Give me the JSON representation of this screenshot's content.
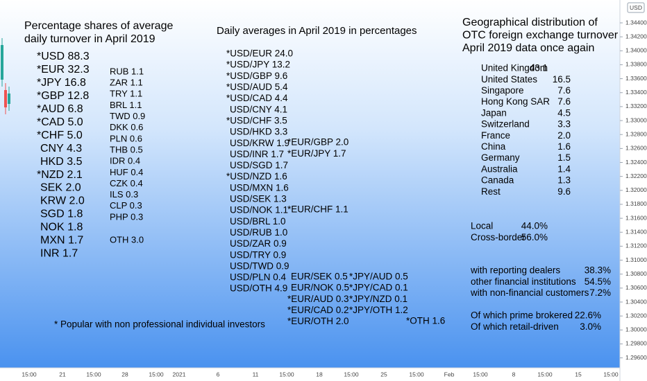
{
  "shares": {
    "title": [
      "Percentage shares of average",
      "daily turnover in April 2019"
    ],
    "main": [
      "*USD 88.3",
      "*EUR 32.3",
      "*JPY 16.8",
      "*GBP 12.8",
      "*AUD 6.8",
      "*CAD 5.0",
      "*CHF 5.0",
      "CNY 4.3",
      "HKD 3.5",
      "*NZD 2.1",
      "SEK 2.0",
      "KRW 2.0",
      "SGD 1.8",
      "NOK 1.8",
      "MXN 1.7",
      "INR 1.7"
    ],
    "minor": [
      "RUB 1.1",
      "ZAR 1.1",
      "TRY 1.1",
      "BRL 1.1",
      "TWD 0.9",
      "DKK 0.6",
      "PLN 0.6",
      "THB 0.5",
      "IDR 0.4",
      "HUF 0.4",
      "CZK 0.4",
      "ILS 0.3",
      "CLP 0.3",
      "PHP 0.3"
    ],
    "other": "OTH 3.0",
    "footnote": "* Popular with non professional individual investors"
  },
  "pairs": {
    "title": "Daily averages in April 2019 in percentages",
    "usd": [
      "*USD/EUR 24.0",
      "*USD/JPY 13.2",
      "*USD/GBP 9.6",
      "*USD/AUD 5.4",
      "*USD/CAD 4.4",
      "USD/CNY 4.1",
      "*USD/CHF 3.5",
      "USD/HKD 3.3",
      "USD/KRW 1.9",
      "USD/INR 1.7",
      "USD/SGD 1.7",
      "*USD/NZD 1.6",
      "USD/MXN 1.6",
      "USD/SEK 1.3",
      "USD/NOK 1.1",
      "USD/BRL 1.0",
      "USD/RUB 1.0",
      "USD/ZAR 0.9",
      "USD/TRY 0.9",
      "USD/TWD 0.9",
      "USD/PLN 0.4",
      "USD/OTH 4.9"
    ],
    "eur_top": [
      "*EUR/GBP 2.0",
      "*EUR/JPY 1.7"
    ],
    "eur_chf": "*EUR/CHF 1.1",
    "eur": [
      "EUR/SEK 0.5",
      "EUR/NOK 0.5",
      "*EUR/AUD 0.3",
      "*EUR/CAD 0.2",
      "*EUR/OTH 2.0"
    ],
    "jpy": [
      "*JPY/AUD 0.5",
      "*JPY/CAD 0.1",
      "*JPY/NZD 0.1",
      "*JPY/OTH 1.2"
    ],
    "other": "*OTH 1.6"
  },
  "geo": {
    "title": [
      "Geographical distribution of",
      "OTC foreign exchange turnover",
      "April 2019 data once again"
    ],
    "countries": [
      [
        "United Kingdom",
        "43.1"
      ],
      [
        "United States",
        "16.5"
      ],
      [
        "Singapore",
        "7.6"
      ],
      [
        "Hong Kong SAR",
        "7.6"
      ],
      [
        "Japan",
        "4.5"
      ],
      [
        "Switzerland",
        "3.3"
      ],
      [
        "France",
        "2.0"
      ],
      [
        "China",
        "1.6"
      ],
      [
        "Germany",
        "1.5"
      ],
      [
        "Australia",
        "1.4"
      ],
      [
        "Canada",
        "1.3"
      ],
      [
        "Rest",
        "9.6"
      ]
    ],
    "location": [
      [
        "Local",
        "44.0%"
      ],
      [
        "Cross-border",
        "56.0%"
      ]
    ],
    "counterparty": [
      [
        "with reporting dealers",
        "38.3%"
      ],
      [
        "other financial institutions",
        "54.5%"
      ],
      [
        "with non-financial customers",
        "7.2%"
      ]
    ],
    "execution": [
      [
        "Of which prime brokered",
        "22.6%"
      ],
      [
        "Of which retail-driven",
        "3.0%"
      ]
    ]
  },
  "axis": {
    "currency": "USD",
    "prices": [
      "1.34400",
      "1.34200",
      "1.34000",
      "1.33800",
      "1.33600",
      "1.33400",
      "1.33200",
      "1.33000",
      "1.32800",
      "1.32600",
      "1.32400",
      "1.32200",
      "1.32000",
      "1.31800",
      "1.31600",
      "1.31400",
      "1.31200",
      "1.31000",
      "1.30800",
      "1.30600",
      "1.30400",
      "1.30200",
      "1.30000",
      "1.29800",
      "1.29600"
    ],
    "times": [
      "15:00",
      "21",
      "15:00",
      "28",
      "15:00",
      "2021",
      "6",
      "11",
      "15:00",
      "18",
      "15:00",
      "25",
      "15:00",
      "Feb",
      "15:00",
      "8",
      "15:00",
      "15",
      "15:00"
    ]
  }
}
